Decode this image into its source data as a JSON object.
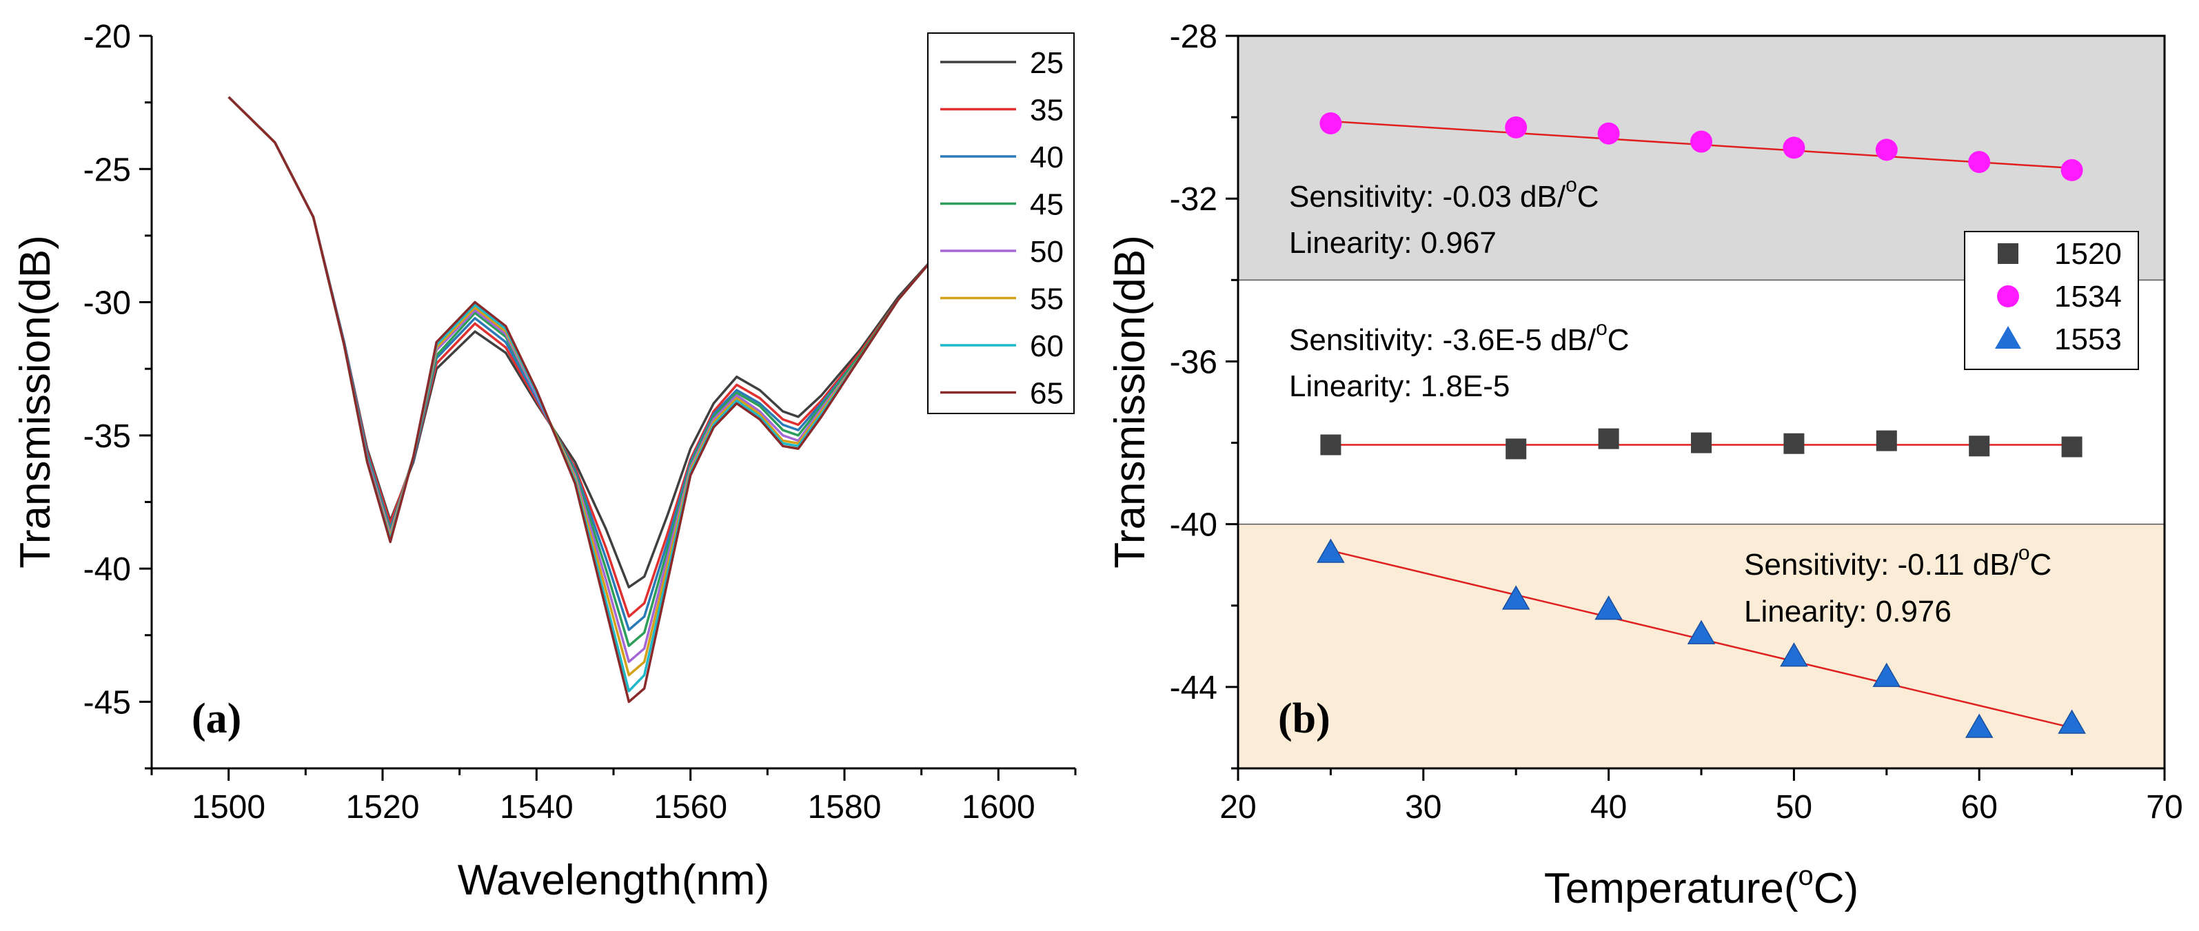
{
  "chart_data": [
    {
      "id": "a",
      "type": "line",
      "panel_label": "(a)",
      "xlabel": "Wavelength(nm)",
      "ylabel": "Transmission(dB)",
      "xlim": [
        1490,
        1610
      ],
      "ylim": [
        -47.5,
        -20
      ],
      "xticks": [
        1500,
        1520,
        1540,
        1560,
        1580,
        1600
      ],
      "yticks": [
        -45,
        -40,
        -35,
        -30,
        -25,
        -20
      ],
      "legend_position": "top-right",
      "series": [
        {
          "name": "25",
          "color": "#404040",
          "points": [
            [
              1500,
              -22.3
            ],
            [
              1506,
              -24.0
            ],
            [
              1511,
              -26.8
            ],
            [
              1515,
              -31.5
            ],
            [
              1518,
              -35.5
            ],
            [
              1521,
              -38.2
            ],
            [
              1524,
              -36.0
            ],
            [
              1527,
              -32.5
            ],
            [
              1532,
              -31.1
            ],
            [
              1536,
              -31.9
            ],
            [
              1540,
              -33.8
            ],
            [
              1545,
              -36.0
            ],
            [
              1549,
              -38.5
            ],
            [
              1552,
              -40.7
            ],
            [
              1554,
              -40.3
            ],
            [
              1557,
              -38.0
            ],
            [
              1560,
              -35.5
            ],
            [
              1563,
              -33.8
            ],
            [
              1566,
              -32.8
            ],
            [
              1569,
              -33.3
            ],
            [
              1572,
              -34.1
            ],
            [
              1574,
              -34.3
            ],
            [
              1577,
              -33.5
            ],
            [
              1582,
              -31.8
            ],
            [
              1587,
              -29.8
            ],
            [
              1592,
              -28.2
            ]
          ]
        },
        {
          "name": "35",
          "color": "#e03030",
          "points": [
            [
              1500,
              -22.3
            ],
            [
              1506,
              -24.0
            ],
            [
              1511,
              -26.8
            ],
            [
              1515,
              -31.5
            ],
            [
              1518,
              -35.6
            ],
            [
              1521,
              -38.3
            ],
            [
              1524,
              -35.9
            ],
            [
              1527,
              -32.3
            ],
            [
              1532,
              -30.8
            ],
            [
              1536,
              -31.7
            ],
            [
              1540,
              -33.7
            ],
            [
              1545,
              -36.2
            ],
            [
              1549,
              -39.2
            ],
            [
              1552,
              -41.8
            ],
            [
              1554,
              -41.3
            ],
            [
              1557,
              -38.7
            ],
            [
              1560,
              -35.9
            ],
            [
              1563,
              -34.1
            ],
            [
              1566,
              -33.1
            ],
            [
              1569,
              -33.6
            ],
            [
              1572,
              -34.4
            ],
            [
              1574,
              -34.6
            ],
            [
              1577,
              -33.7
            ],
            [
              1582,
              -31.9
            ],
            [
              1587,
              -29.9
            ],
            [
              1592,
              -28.2
            ]
          ]
        },
        {
          "name": "40",
          "color": "#2a7ab8",
          "points": [
            [
              1500,
              -22.3
            ],
            [
              1506,
              -24.0
            ],
            [
              1511,
              -26.8
            ],
            [
              1515,
              -31.5
            ],
            [
              1518,
              -35.7
            ],
            [
              1521,
              -38.5
            ],
            [
              1524,
              -35.9
            ],
            [
              1527,
              -32.1
            ],
            [
              1532,
              -30.6
            ],
            [
              1536,
              -31.5
            ],
            [
              1540,
              -33.6
            ],
            [
              1545,
              -36.3
            ],
            [
              1549,
              -39.6
            ],
            [
              1552,
              -42.3
            ],
            [
              1554,
              -41.8
            ],
            [
              1557,
              -39.0
            ],
            [
              1560,
              -36.0
            ],
            [
              1563,
              -34.2
            ],
            [
              1566,
              -33.3
            ],
            [
              1569,
              -33.8
            ],
            [
              1572,
              -34.6
            ],
            [
              1574,
              -34.8
            ],
            [
              1577,
              -33.8
            ],
            [
              1582,
              -32.0
            ],
            [
              1587,
              -29.9
            ],
            [
              1592,
              -28.2
            ]
          ]
        },
        {
          "name": "45",
          "color": "#2e9e5b",
          "points": [
            [
              1500,
              -22.3
            ],
            [
              1506,
              -24.0
            ],
            [
              1511,
              -26.8
            ],
            [
              1515,
              -31.6
            ],
            [
              1518,
              -35.8
            ],
            [
              1521,
              -38.6
            ],
            [
              1524,
              -35.8
            ],
            [
              1527,
              -32.0
            ],
            [
              1532,
              -30.4
            ],
            [
              1536,
              -31.3
            ],
            [
              1540,
              -33.5
            ],
            [
              1545,
              -36.4
            ],
            [
              1549,
              -40.0
            ],
            [
              1552,
              -42.9
            ],
            [
              1554,
              -42.4
            ],
            [
              1557,
              -39.3
            ],
            [
              1560,
              -36.1
            ],
            [
              1563,
              -34.3
            ],
            [
              1566,
              -33.4
            ],
            [
              1569,
              -33.9
            ],
            [
              1572,
              -34.8
            ],
            [
              1574,
              -35.0
            ],
            [
              1577,
              -33.9
            ],
            [
              1582,
              -32.0
            ],
            [
              1587,
              -29.9
            ],
            [
              1592,
              -28.2
            ]
          ]
        },
        {
          "name": "50",
          "color": "#a566d6",
          "points": [
            [
              1500,
              -22.3
            ],
            [
              1506,
              -24.0
            ],
            [
              1511,
              -26.8
            ],
            [
              1515,
              -31.6
            ],
            [
              1518,
              -35.9
            ],
            [
              1521,
              -38.7
            ],
            [
              1524,
              -35.8
            ],
            [
              1527,
              -31.8
            ],
            [
              1532,
              -30.3
            ],
            [
              1536,
              -31.2
            ],
            [
              1540,
              -33.5
            ],
            [
              1545,
              -36.5
            ],
            [
              1549,
              -40.4
            ],
            [
              1552,
              -43.5
            ],
            [
              1554,
              -43.0
            ],
            [
              1557,
              -39.6
            ],
            [
              1560,
              -36.2
            ],
            [
              1563,
              -34.4
            ],
            [
              1566,
              -33.5
            ],
            [
              1569,
              -34.1
            ],
            [
              1572,
              -35.0
            ],
            [
              1574,
              -35.2
            ],
            [
              1577,
              -34.0
            ],
            [
              1582,
              -32.1
            ],
            [
              1587,
              -29.9
            ],
            [
              1592,
              -28.2
            ]
          ]
        },
        {
          "name": "55",
          "color": "#d4a017",
          "points": [
            [
              1500,
              -22.3
            ],
            [
              1506,
              -24.0
            ],
            [
              1511,
              -26.8
            ],
            [
              1515,
              -31.6
            ],
            [
              1518,
              -36.0
            ],
            [
              1521,
              -38.8
            ],
            [
              1524,
              -35.8
            ],
            [
              1527,
              -31.7
            ],
            [
              1532,
              -30.2
            ],
            [
              1536,
              -31.1
            ],
            [
              1540,
              -33.4
            ],
            [
              1545,
              -36.6
            ],
            [
              1549,
              -40.8
            ],
            [
              1552,
              -44.0
            ],
            [
              1554,
              -43.5
            ],
            [
              1557,
              -39.9
            ],
            [
              1560,
              -36.3
            ],
            [
              1563,
              -34.5
            ],
            [
              1566,
              -33.6
            ],
            [
              1569,
              -34.2
            ],
            [
              1572,
              -35.2
            ],
            [
              1574,
              -35.3
            ],
            [
              1577,
              -34.1
            ],
            [
              1582,
              -32.1
            ],
            [
              1587,
              -29.9
            ],
            [
              1592,
              -28.2
            ]
          ]
        },
        {
          "name": "60",
          "color": "#1fb8c9",
          "points": [
            [
              1500,
              -22.3
            ],
            [
              1506,
              -24.0
            ],
            [
              1511,
              -26.8
            ],
            [
              1515,
              -31.6
            ],
            [
              1518,
              -36.0
            ],
            [
              1521,
              -38.9
            ],
            [
              1524,
              -35.8
            ],
            [
              1527,
              -31.6
            ],
            [
              1532,
              -30.1
            ],
            [
              1536,
              -31.0
            ],
            [
              1540,
              -33.4
            ],
            [
              1545,
              -36.7
            ],
            [
              1549,
              -41.2
            ],
            [
              1552,
              -44.6
            ],
            [
              1554,
              -44.0
            ],
            [
              1557,
              -40.2
            ],
            [
              1560,
              -36.4
            ],
            [
              1563,
              -34.6
            ],
            [
              1566,
              -33.7
            ],
            [
              1569,
              -34.3
            ],
            [
              1572,
              -35.3
            ],
            [
              1574,
              -35.4
            ],
            [
              1577,
              -34.2
            ],
            [
              1582,
              -32.1
            ],
            [
              1587,
              -29.9
            ],
            [
              1592,
              -28.2
            ]
          ]
        },
        {
          "name": "65",
          "color": "#8b2a2a",
          "points": [
            [
              1500,
              -22.3
            ],
            [
              1506,
              -24.0
            ],
            [
              1511,
              -26.8
            ],
            [
              1515,
              -31.6
            ],
            [
              1518,
              -36.0
            ],
            [
              1521,
              -39.0
            ],
            [
              1524,
              -35.8
            ],
            [
              1527,
              -31.5
            ],
            [
              1532,
              -30.0
            ],
            [
              1536,
              -30.9
            ],
            [
              1540,
              -33.3
            ],
            [
              1545,
              -36.8
            ],
            [
              1549,
              -41.5
            ],
            [
              1552,
              -45.0
            ],
            [
              1554,
              -44.5
            ],
            [
              1557,
              -40.5
            ],
            [
              1560,
              -36.5
            ],
            [
              1563,
              -34.7
            ],
            [
              1566,
              -33.8
            ],
            [
              1569,
              -34.4
            ],
            [
              1572,
              -35.4
            ],
            [
              1574,
              -35.5
            ],
            [
              1577,
              -34.3
            ],
            [
              1582,
              -32.1
            ],
            [
              1587,
              -29.9
            ],
            [
              1592,
              -28.2
            ]
          ]
        }
      ]
    },
    {
      "id": "b",
      "type": "scatter",
      "panel_label": "(b)",
      "xlabel_main": "Temperature(",
      "xlabel_sup": "o",
      "xlabel_end": "C)",
      "ylabel": "Transmission(dB)",
      "xlim": [
        20,
        70
      ],
      "ylim": [
        -46,
        -28
      ],
      "xticks": [
        20,
        30,
        40,
        50,
        60,
        70
      ],
      "yticks": [
        -44,
        -40,
        -36,
        -32,
        -28
      ],
      "legend_position": "right",
      "regions": [
        {
          "name": "upper",
          "y0": -34,
          "y1": -28,
          "color": "#d9d9d9"
        },
        {
          "name": "middle",
          "y0": -40,
          "y1": -34,
          "color": "#ffffff"
        },
        {
          "name": "lower",
          "y0": -46,
          "y1": -40,
          "color": "#faecd6"
        }
      ],
      "fit_color": "#e02020",
      "series": [
        {
          "name": "1520",
          "marker": "square",
          "color": "#404040",
          "x": [
            25,
            35,
            40,
            45,
            50,
            55,
            60,
            65
          ],
          "y": [
            -38.05,
            -38.15,
            -37.9,
            -38.0,
            -38.02,
            -37.95,
            -38.08,
            -38.1
          ],
          "fit": [
            [
              25,
              -38.05
            ],
            [
              65,
              -38.05
            ]
          ]
        },
        {
          "name": "1534",
          "marker": "circle",
          "color": "#ff1aff",
          "x": [
            25,
            35,
            40,
            45,
            50,
            55,
            60,
            65
          ],
          "y": [
            -30.15,
            -30.25,
            -30.4,
            -30.6,
            -30.75,
            -30.8,
            -31.1,
            -31.3
          ],
          "fit": [
            [
              25,
              -30.1
            ],
            [
              65,
              -31.25
            ]
          ]
        },
        {
          "name": "1553",
          "marker": "triangle",
          "color": "#1f6fd6",
          "x": [
            25,
            35,
            40,
            45,
            50,
            55,
            60,
            65
          ],
          "y": [
            -40.7,
            -41.85,
            -42.1,
            -42.7,
            -43.25,
            -43.75,
            -45.0,
            -44.9
          ],
          "fit": [
            [
              25,
              -40.65
            ],
            [
              65,
              -45.0
            ]
          ]
        }
      ],
      "annotations": [
        {
          "name": "upper",
          "sensitivity_prefix": "Sensitivity: -0.03 dB/",
          "sensitivity_sup": "o",
          "sensitivity_suffix": "C",
          "linearity": "Linearity: 0.967"
        },
        {
          "name": "middle",
          "sensitivity_prefix": "Sensitivity: -3.6E-5 dB/",
          "sensitivity_sup": "o",
          "sensitivity_suffix": "C",
          "linearity": "Linearity: 1.8E-5"
        },
        {
          "name": "lower",
          "sensitivity_prefix": "Sensitivity: -0.11 dB/",
          "sensitivity_sup": "o",
          "sensitivity_suffix": "C",
          "linearity": "Linearity: 0.976"
        }
      ]
    }
  ]
}
